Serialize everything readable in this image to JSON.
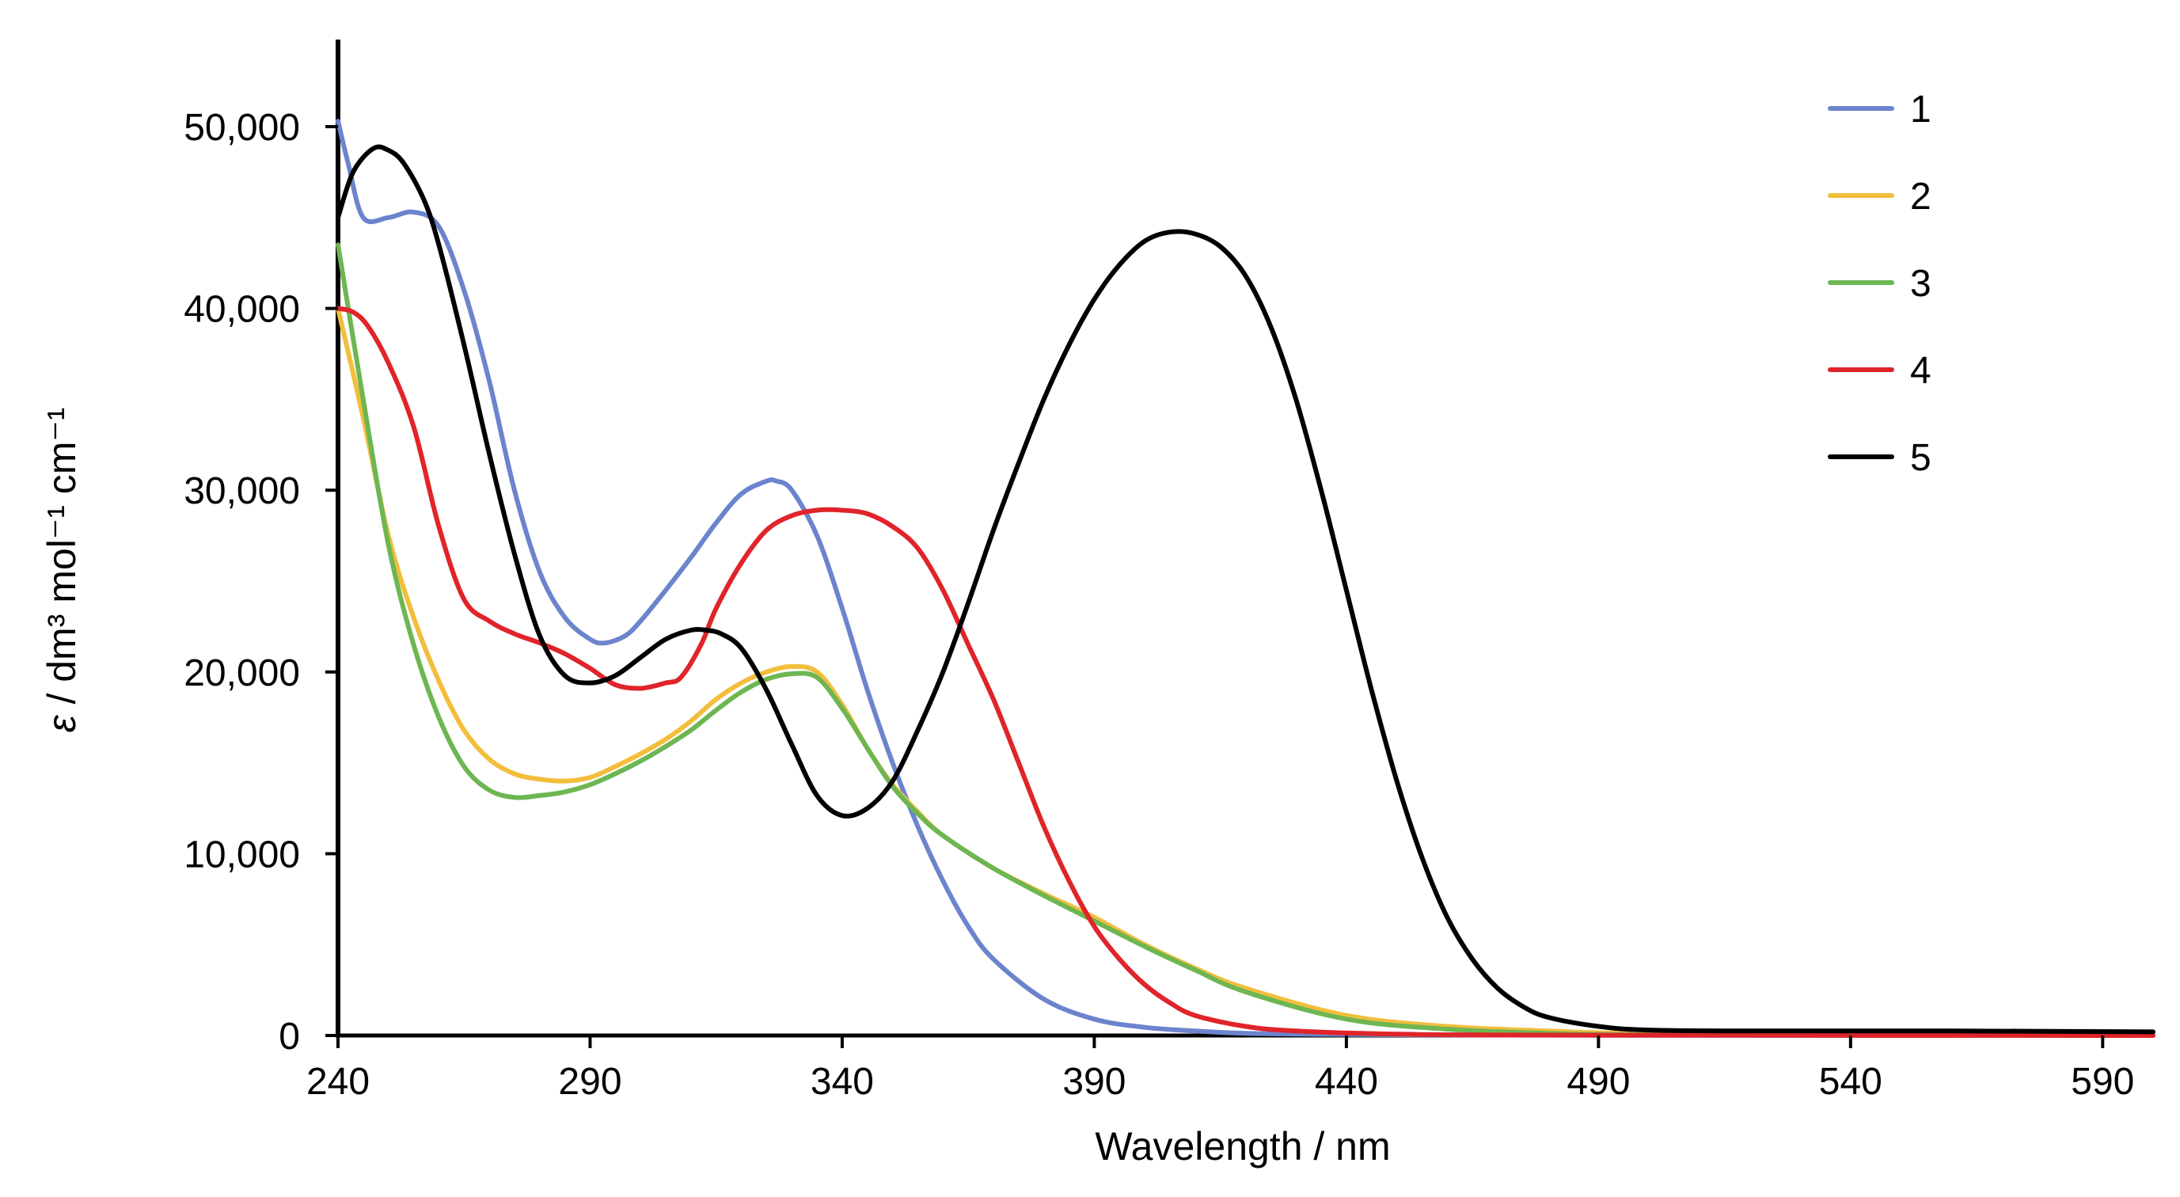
{
  "chart_data": {
    "type": "line",
    "title": "",
    "xlabel": "Wavelength / nm",
    "ylabel": {
      "symbol": "ε",
      "text": " / dm³ mol⁻¹ cm⁻¹"
    },
    "xlim": [
      240,
      600
    ],
    "ylim": [
      0,
      55000
    ],
    "xticks": [
      240,
      290,
      340,
      390,
      440,
      490,
      540,
      590
    ],
    "xtick_labels": [
      "240",
      "290",
      "340",
      "390",
      "440",
      "490",
      "540",
      "590"
    ],
    "yticks": [
      0,
      10000,
      20000,
      30000,
      40000,
      50000
    ],
    "ytick_labels": [
      "0",
      "10,000",
      "20,000",
      "30,000",
      "40,000",
      "50,000"
    ],
    "grid": false,
    "legend_position": "top-right",
    "series": [
      {
        "name": "1",
        "color": "#6B84CD",
        "x": [
          240,
          242,
          245,
          250,
          255,
          260,
          265,
          270,
          275,
          280,
          285,
          290,
          293,
          297,
          300,
          305,
          310,
          315,
          320,
          325,
          327,
          330,
          335,
          340,
          345,
          350,
          355,
          360,
          365,
          370,
          380,
          390,
          400,
          410,
          420,
          440,
          460,
          500,
          600
        ],
        "values": [
          50300,
          48000,
          45000,
          45000,
          45300,
          44500,
          41000,
          36000,
          30000,
          25500,
          23000,
          21800,
          21600,
          22000,
          22800,
          24500,
          26300,
          28200,
          29800,
          30500,
          30500,
          30000,
          27500,
          23500,
          19000,
          15000,
          11500,
          8500,
          6000,
          4200,
          2000,
          900,
          450,
          250,
          120,
          60,
          30,
          10,
          0
        ]
      },
      {
        "name": "2",
        "color": "#F2BE3C",
        "x": [
          240,
          245,
          250,
          255,
          260,
          265,
          270,
          275,
          280,
          285,
          290,
          295,
          300,
          305,
          310,
          315,
          320,
          325,
          330,
          335,
          340,
          345,
          350,
          355,
          360,
          370,
          380,
          390,
          400,
          410,
          420,
          440,
          460,
          480,
          500,
          550,
          600
        ],
        "values": [
          40000,
          34000,
          27500,
          23000,
          19500,
          16800,
          15200,
          14400,
          14100,
          14000,
          14200,
          14800,
          15500,
          16300,
          17300,
          18500,
          19400,
          20000,
          20300,
          20000,
          18200,
          15800,
          13800,
          12300,
          11000,
          9200,
          7800,
          6500,
          5000,
          3700,
          2600,
          1100,
          500,
          250,
          100,
          20,
          0
        ]
      },
      {
        "name": "3",
        "color": "#6DB652",
        "x": [
          240,
          245,
          250,
          255,
          260,
          265,
          270,
          275,
          280,
          285,
          290,
          295,
          300,
          305,
          310,
          315,
          320,
          325,
          330,
          335,
          340,
          345,
          350,
          355,
          360,
          370,
          380,
          390,
          400,
          410,
          420,
          440,
          460,
          480,
          500,
          550,
          600
        ],
        "values": [
          43500,
          35000,
          27000,
          21500,
          17500,
          14800,
          13500,
          13100,
          13200,
          13400,
          13800,
          14400,
          15100,
          15900,
          16800,
          17900,
          18900,
          19600,
          19900,
          19700,
          18000,
          15800,
          13700,
          12200,
          11000,
          9200,
          7700,
          6300,
          4900,
          3600,
          2400,
          900,
          350,
          120,
          40,
          10,
          0
        ]
      },
      {
        "name": "4",
        "color": "#E0242A",
        "x": [
          240,
          243,
          246,
          250,
          255,
          260,
          265,
          270,
          275,
          280,
          285,
          290,
          295,
          300,
          305,
          308,
          312,
          315,
          320,
          325,
          330,
          335,
          340,
          345,
          350,
          355,
          360,
          365,
          370,
          375,
          380,
          385,
          390,
          395,
          400,
          405,
          410,
          420,
          430,
          450,
          480,
          600
        ],
        "values": [
          40000,
          39800,
          39000,
          37000,
          33500,
          28000,
          24000,
          22800,
          22100,
          21600,
          21000,
          20200,
          19300,
          19100,
          19400,
          19700,
          21500,
          23500,
          26000,
          27800,
          28600,
          28900,
          28900,
          28700,
          28000,
          26800,
          24500,
          21500,
          18500,
          15000,
          11500,
          8500,
          6000,
          4200,
          2800,
          1800,
          1100,
          500,
          250,
          80,
          20,
          0
        ]
      },
      {
        "name": "5",
        "color": "#000000",
        "x": [
          240,
          243,
          247,
          250,
          253,
          257,
          260,
          265,
          270,
          275,
          280,
          285,
          290,
          295,
          300,
          305,
          310,
          313,
          316,
          320,
          325,
          330,
          335,
          340,
          345,
          350,
          355,
          360,
          365,
          370,
          375,
          380,
          385,
          390,
          395,
          400,
          405,
          410,
          415,
          420,
          425,
          430,
          435,
          440,
          445,
          450,
          455,
          460,
          465,
          470,
          475,
          480,
          490,
          500,
          520,
          560,
          600
        ],
        "values": [
          45000,
          47500,
          48800,
          48700,
          48000,
          46000,
          43500,
          38000,
          32000,
          26500,
          22000,
          19800,
          19400,
          19800,
          20800,
          21800,
          22300,
          22300,
          22100,
          21300,
          19000,
          16000,
          13200,
          12100,
          12500,
          14000,
          16800,
          20000,
          23800,
          27800,
          31500,
          35000,
          38000,
          40500,
          42400,
          43700,
          44200,
          44100,
          43400,
          41800,
          39000,
          35000,
          30000,
          24500,
          19000,
          14000,
          9800,
          6500,
          4200,
          2600,
          1600,
          1000,
          500,
          300,
          250,
          250,
          200
        ]
      }
    ]
  }
}
